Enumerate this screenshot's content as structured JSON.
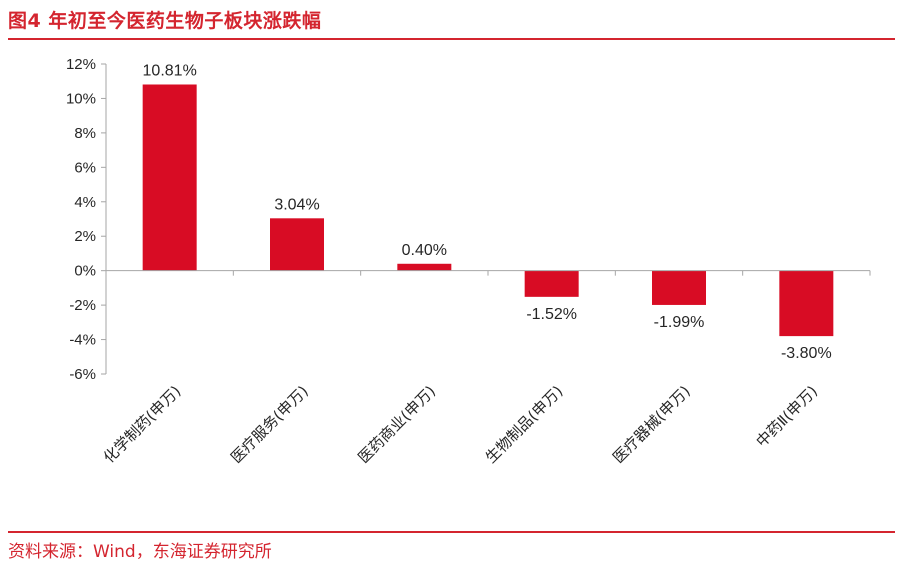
{
  "title": "图4   年初至今医药生物子板块涨跌幅",
  "source": "资料来源：Wind，东海证券研究所",
  "colors": {
    "accent": "#d4252f",
    "bar": "#d80c24",
    "axis": "#a6a6a6"
  },
  "chart_data": {
    "type": "bar",
    "categories": [
      "化学制药(申万)",
      "医疗服务(申万)",
      "医药商业(申万)",
      "生物制品(申万)",
      "医疗器械(申万)",
      "中药Ⅱ(申万)"
    ],
    "values": [
      10.81,
      3.04,
      0.4,
      -1.52,
      -1.99,
      -3.8
    ],
    "value_labels": [
      "10.81%",
      "3.04%",
      "0.40%",
      "-1.52%",
      "-1.99%",
      "-3.80%"
    ],
    "ylim": [
      -6,
      12
    ],
    "yticks": [
      12,
      10,
      8,
      6,
      4,
      2,
      0,
      -2,
      -4,
      -6
    ],
    "ytick_labels": [
      "12%",
      "10%",
      "8%",
      "6%",
      "4%",
      "2%",
      "0%",
      "-2%",
      "-4%",
      "-6%"
    ],
    "grid": false,
    "legend": "none"
  }
}
